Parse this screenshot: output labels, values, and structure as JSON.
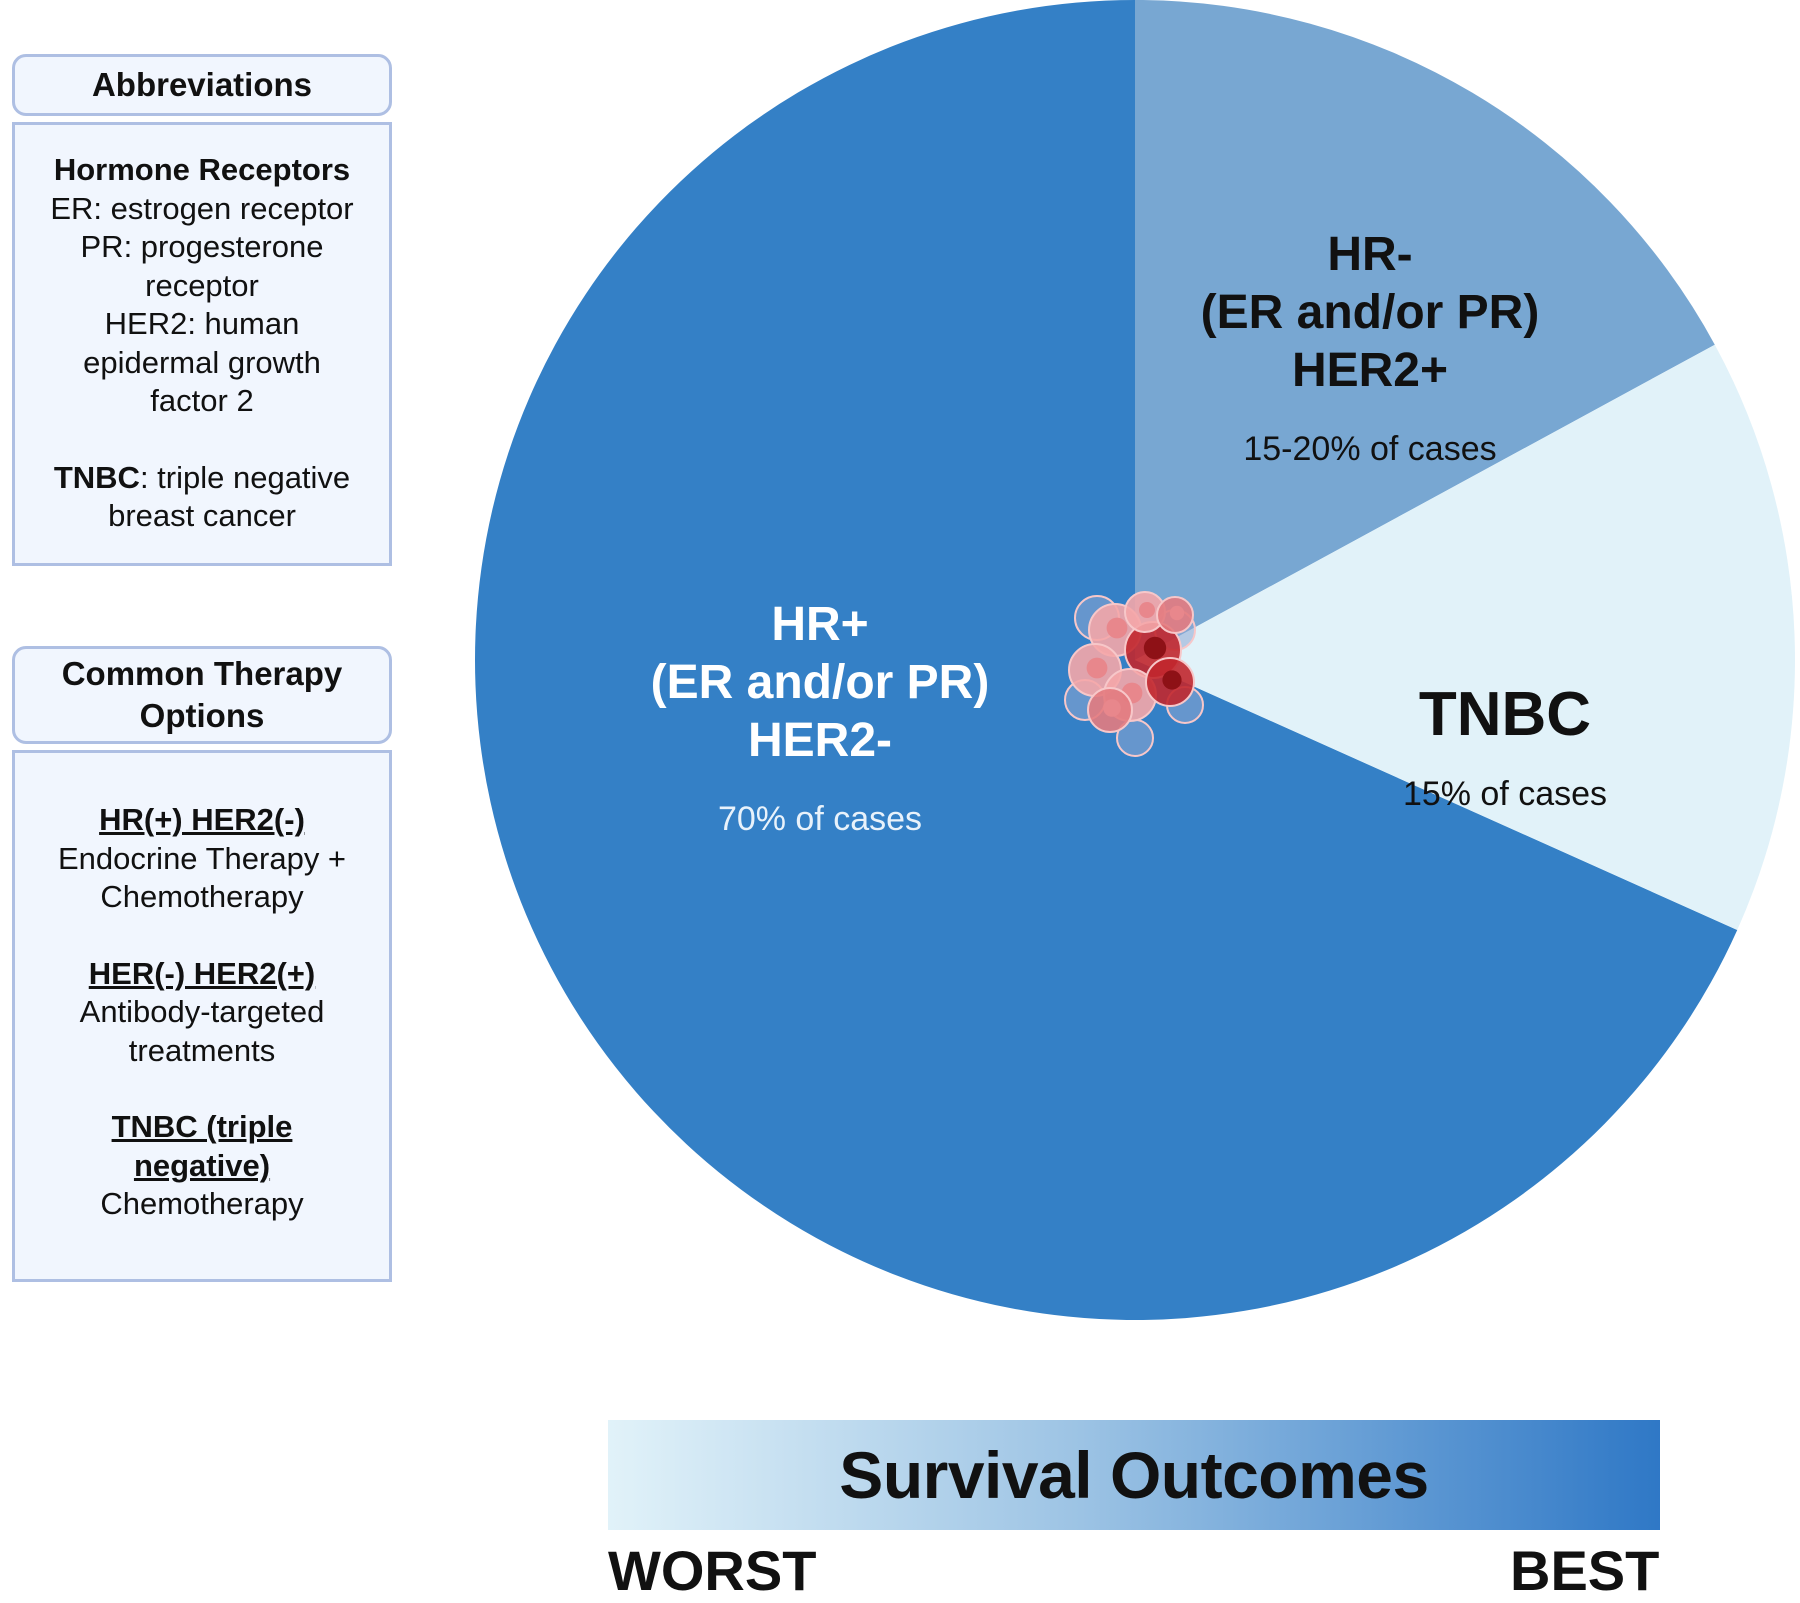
{
  "chart_data": {
    "type": "pie",
    "title": "",
    "slices": [
      {
        "name": "HR+ (ER and/or PR) HER2-",
        "label_lines": [
          "HR+",
          "(ER and/or PR)",
          "HER2-"
        ],
        "value": 70,
        "caption": "70% of cases",
        "color": "#3480c6",
        "label_color": "#ffffff",
        "caption_color": "#e8f2fb"
      },
      {
        "name": "HR- (ER and/or PR) HER2+",
        "label_lines": [
          "HR-",
          "(ER and/or PR)",
          "HER2+"
        ],
        "value": 17.5,
        "caption": "15-20% of cases",
        "color": "#78a7d2",
        "label_color": "#111111",
        "caption_color": "#111111"
      },
      {
        "name": "TNBC",
        "label_lines": [
          "TNBC"
        ],
        "value": 15,
        "caption": "15% of cases",
        "color": "#e1f2f9",
        "label_color": "#111111",
        "caption_color": "#111111"
      }
    ],
    "legend": "none"
  },
  "abbreviations": {
    "title": "Abbreviations",
    "section_heading": "Hormone Receptors",
    "lines": [
      "ER: estrogen receptor",
      "PR: progesterone",
      "receptor",
      "HER2: human",
      "epidermal growth",
      "factor 2"
    ],
    "tnbc_term": "TNBC",
    "tnbc_def_1": ": triple negative",
    "tnbc_def_2": "breast cancer"
  },
  "therapy": {
    "title_line1": "Common Therapy",
    "title_line2": "Options",
    "items": [
      {
        "heading": [
          "HR(+) HER2(-)"
        ],
        "text": [
          "Endocrine Therapy +",
          "Chemotherapy"
        ]
      },
      {
        "heading": [
          "HER(-) HER2(+)"
        ],
        "text": [
          "Antibody-targeted",
          "treatments"
        ]
      },
      {
        "heading": [
          "TNBC (triple",
          "negative)"
        ],
        "text": [
          "Chemotherapy"
        ]
      }
    ]
  },
  "survival": {
    "title": "Survival Outcomes",
    "left_label": "WORST",
    "right_label": "BEST",
    "gradient": [
      "#e1f2f9",
      "#2f78c6"
    ]
  },
  "center_graphic": {
    "icon": "cancer-cell-cluster-icon",
    "colors": [
      "#f4a6a8",
      "#e37b80",
      "#c1272d",
      "#8fa7d3"
    ]
  }
}
